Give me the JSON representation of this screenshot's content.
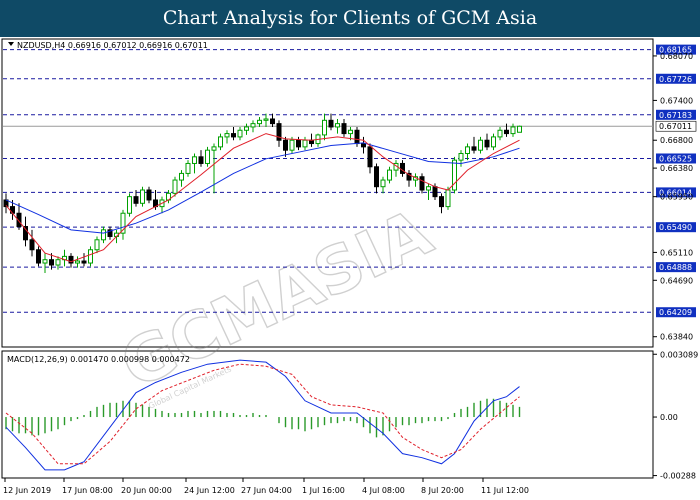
{
  "header": {
    "title": "Chart Analysis for Clients of GCM Asia"
  },
  "watermark": {
    "text": "GCMASIA",
    "subtext": "Global Capital Markets"
  },
  "colors": {
    "title_bg": "#0f4a66",
    "bull_candle": "#00a000",
    "bear_candle": "#000000",
    "ma_fast": "#e0202a",
    "ma_slow": "#1030e0",
    "level_line": "#1a1aa0",
    "level_label_bg": "#1030c0",
    "macd_line": "#1030e0",
    "signal_line": "#e0202a",
    "histogram": "#2a9a2a"
  },
  "chart_data": [
    {
      "type": "candlestick",
      "symbol_line": "NZDUSD,H4  0.66916 0.67012 0.66916 0.67011",
      "ylim": [
        0.637,
        0.6831
      ],
      "current_price": "0.67011",
      "y_ticks": [
        "0.68070",
        "0.67400",
        "0.66800",
        "0.66380",
        "0.65950",
        "0.65110",
        "0.64690",
        "0.63840"
      ],
      "levels": [
        "0.68165",
        "0.67726",
        "0.67183",
        "0.66525",
        "0.66014",
        "0.65490",
        "0.64888",
        "0.64209"
      ],
      "x_tick_labels": [
        "12 Jun 2019",
        "17 Jun 08:00",
        "20 Jun 00:00",
        "24 Jun 12:00",
        "27 Jun 04:00",
        "1 Jul 16:00",
        "4 Jul 08:00",
        "8 Jul 20:00",
        "11 Jul 12:00"
      ],
      "candles": [
        [
          0.659,
          0.66,
          0.657,
          0.658
        ],
        [
          0.658,
          0.659,
          0.656,
          0.657
        ],
        [
          0.657,
          0.6585,
          0.6545,
          0.655
        ],
        [
          0.655,
          0.6565,
          0.652,
          0.653
        ],
        [
          0.653,
          0.6545,
          0.6505,
          0.6515
        ],
        [
          0.6515,
          0.652,
          0.649,
          0.6495
        ],
        [
          0.6495,
          0.651,
          0.648,
          0.65
        ],
        [
          0.65,
          0.651,
          0.6485,
          0.6492
        ],
        [
          0.6492,
          0.6505,
          0.6485,
          0.65
        ],
        [
          0.65,
          0.6515,
          0.649,
          0.6505
        ],
        [
          0.6505,
          0.651,
          0.6488,
          0.6495
        ],
        [
          0.6495,
          0.6505,
          0.6488,
          0.6498
        ],
        [
          0.6498,
          0.651,
          0.649,
          0.6495
        ],
        [
          0.6495,
          0.652,
          0.649,
          0.6515
        ],
        [
          0.6515,
          0.6535,
          0.651,
          0.653
        ],
        [
          0.653,
          0.655,
          0.6525,
          0.6545
        ],
        [
          0.6545,
          0.655,
          0.653,
          0.6535
        ],
        [
          0.6535,
          0.6545,
          0.6525,
          0.654
        ],
        [
          0.654,
          0.6575,
          0.653,
          0.657
        ],
        [
          0.657,
          0.66,
          0.6565,
          0.6595
        ],
        [
          0.6595,
          0.6605,
          0.658,
          0.6585
        ],
        [
          0.6585,
          0.661,
          0.658,
          0.6605
        ],
        [
          0.6605,
          0.661,
          0.6585,
          0.659
        ],
        [
          0.659,
          0.6605,
          0.6575,
          0.658
        ],
        [
          0.658,
          0.6595,
          0.657,
          0.659
        ],
        [
          0.659,
          0.6605,
          0.6585,
          0.66
        ],
        [
          0.66,
          0.6625,
          0.6595,
          0.662
        ],
        [
          0.662,
          0.6635,
          0.661,
          0.663
        ],
        [
          0.663,
          0.665,
          0.6625,
          0.6645
        ],
        [
          0.6645,
          0.666,
          0.663,
          0.6655
        ],
        [
          0.6655,
          0.6665,
          0.664,
          0.6645
        ],
        [
          0.6645,
          0.667,
          0.664,
          0.6665
        ],
        [
          0.6665,
          0.6675,
          0.66,
          0.667
        ],
        [
          0.667,
          0.669,
          0.6665,
          0.6685
        ],
        [
          0.6685,
          0.6695,
          0.6675,
          0.669
        ],
        [
          0.669,
          0.67,
          0.668,
          0.6685
        ],
        [
          0.6685,
          0.67,
          0.668,
          0.6695
        ],
        [
          0.6695,
          0.6705,
          0.6688,
          0.67
        ],
        [
          0.67,
          0.671,
          0.6692,
          0.6705
        ],
        [
          0.6705,
          0.6715,
          0.67,
          0.671
        ],
        [
          0.671,
          0.672,
          0.67,
          0.6712
        ],
        [
          0.6712,
          0.672,
          0.67,
          0.6705
        ],
        [
          0.6705,
          0.671,
          0.667,
          0.668
        ],
        [
          0.668,
          0.6685,
          0.6655,
          0.6665
        ],
        [
          0.6665,
          0.6685,
          0.666,
          0.668
        ],
        [
          0.668,
          0.6685,
          0.6665,
          0.667
        ],
        [
          0.667,
          0.6685,
          0.6665,
          0.668
        ],
        [
          0.668,
          0.669,
          0.667,
          0.6675
        ],
        [
          0.6675,
          0.669,
          0.667,
          0.6688
        ],
        [
          0.6688,
          0.672,
          0.668,
          0.671
        ],
        [
          0.671,
          0.672,
          0.6695,
          0.67
        ],
        [
          0.67,
          0.6712,
          0.669,
          0.6705
        ],
        [
          0.6705,
          0.6712,
          0.6685,
          0.669
        ],
        [
          0.669,
          0.67,
          0.668,
          0.6695
        ],
        [
          0.6695,
          0.67,
          0.667,
          0.6675
        ],
        [
          0.6675,
          0.6685,
          0.666,
          0.667
        ],
        [
          0.667,
          0.6675,
          0.663,
          0.664
        ],
        [
          0.664,
          0.6645,
          0.66,
          0.661
        ],
        [
          0.661,
          0.6625,
          0.66,
          0.662
        ],
        [
          0.662,
          0.664,
          0.6615,
          0.6635
        ],
        [
          0.6635,
          0.665,
          0.6625,
          0.6645
        ],
        [
          0.6645,
          0.665,
          0.6625,
          0.663
        ],
        [
          0.663,
          0.6635,
          0.661,
          0.662
        ],
        [
          0.662,
          0.663,
          0.661,
          0.6625
        ],
        [
          0.6625,
          0.663,
          0.66,
          0.6605
        ],
        [
          0.6605,
          0.6615,
          0.659,
          0.661
        ],
        [
          0.661,
          0.6615,
          0.659,
          0.6595
        ],
        [
          0.6595,
          0.66,
          0.657,
          0.658
        ],
        [
          0.658,
          0.661,
          0.6575,
          0.6605
        ],
        [
          0.6605,
          0.6655,
          0.66,
          0.665
        ],
        [
          0.665,
          0.6665,
          0.664,
          0.666
        ],
        [
          0.666,
          0.6675,
          0.665,
          0.667
        ],
        [
          0.667,
          0.6685,
          0.666,
          0.6665
        ],
        [
          0.6665,
          0.6685,
          0.666,
          0.668
        ],
        [
          0.668,
          0.669,
          0.6665,
          0.667
        ],
        [
          0.667,
          0.669,
          0.6665,
          0.6685
        ],
        [
          0.6685,
          0.67,
          0.668,
          0.6695
        ],
        [
          0.6695,
          0.6705,
          0.6685,
          0.669
        ],
        [
          0.669,
          0.6705,
          0.6685,
          0.67
        ],
        [
          0.6692,
          0.6702,
          0.6692,
          0.6701
        ]
      ],
      "ma_fast": [
        [
          0,
          0.6582
        ],
        [
          6,
          0.651
        ],
        [
          10,
          0.6497
        ],
        [
          15,
          0.6515
        ],
        [
          20,
          0.6565
        ],
        [
          25,
          0.659
        ],
        [
          30,
          0.6628
        ],
        [
          35,
          0.6668
        ],
        [
          40,
          0.669
        ],
        [
          43,
          0.6682
        ],
        [
          47,
          0.668
        ],
        [
          51,
          0.6685
        ],
        [
          55,
          0.668
        ],
        [
          58,
          0.6655
        ],
        [
          62,
          0.6628
        ],
        [
          66,
          0.661
        ],
        [
          68,
          0.6605
        ],
        [
          71,
          0.6635
        ],
        [
          75,
          0.666
        ],
        [
          79,
          0.668
        ]
      ],
      "ma_slow": [
        [
          0,
          0.659
        ],
        [
          5,
          0.6568
        ],
        [
          10,
          0.6545
        ],
        [
          15,
          0.654
        ],
        [
          20,
          0.6555
        ],
        [
          25,
          0.6575
        ],
        [
          30,
          0.6602
        ],
        [
          35,
          0.663
        ],
        [
          40,
          0.6652
        ],
        [
          45,
          0.6662
        ],
        [
          50,
          0.6672
        ],
        [
          55,
          0.6676
        ],
        [
          60,
          0.6662
        ],
        [
          65,
          0.6648
        ],
        [
          70,
          0.6645
        ],
        [
          75,
          0.6655
        ],
        [
          79,
          0.6668
        ]
      ]
    },
    {
      "type": "macd",
      "label": "MACD(12,26,9) 0.001470 0.000998 0.000472",
      "ylim": [
        -0.00295,
        0.0032
      ],
      "y_ticks": [
        "0.003089",
        "0.00",
        "-0.00288"
      ],
      "histogram": [
        -0.0006,
        -0.0007,
        -0.0008,
        -0.0008,
        -0.0009,
        -0.0009,
        -0.0008,
        -0.0007,
        -0.0006,
        -0.0004,
        -0.0002,
        -0.0001,
        0.0001,
        0.0003,
        0.0005,
        0.0006,
        0.0007,
        0.0007,
        0.0008,
        0.0008,
        0.0007,
        0.0006,
        0.0005,
        0.0004,
        0.0003,
        0.0002,
        0.0002,
        0.0002,
        0.0003,
        0.0003,
        0.0002,
        0.0003,
        0.0003,
        0.0003,
        0.0002,
        0.0002,
        0.0001,
        0.0001,
        0.0002,
        0.0001,
        0.0001,
        0.0,
        -0.0003,
        -0.0005,
        -0.0006,
        -0.0006,
        -0.0007,
        -0.0006,
        -0.0005,
        -0.0004,
        -0.0003,
        -0.0003,
        -0.0002,
        -0.0002,
        -0.0003,
        -0.0005,
        -0.0008,
        -0.001,
        -0.0009,
        -0.0007,
        -0.0005,
        -0.0004,
        -0.0004,
        -0.0003,
        -0.0003,
        -0.0002,
        -0.0002,
        -0.0002,
        -0.0001,
        0.0002,
        0.0004,
        0.0005,
        0.0007,
        0.0008,
        0.0009,
        0.0009,
        0.0008,
        0.0007,
        0.0006,
        0.0005
      ],
      "macd": [
        [
          0,
          -0.0005
        ],
        [
          3,
          -0.0015
        ],
        [
          6,
          -0.0026
        ],
        [
          9,
          -0.0026
        ],
        [
          12,
          -0.0022
        ],
        [
          16,
          -0.0005
        ],
        [
          20,
          0.0012
        ],
        [
          23,
          0.0017
        ],
        [
          27,
          0.0022
        ],
        [
          31,
          0.0026
        ],
        [
          36,
          0.0028
        ],
        [
          40,
          0.0027
        ],
        [
          43,
          0.002
        ],
        [
          46,
          0.0008
        ],
        [
          50,
          0.0002
        ],
        [
          54,
          0.0002
        ],
        [
          58,
          -0.0008
        ],
        [
          61,
          -0.0018
        ],
        [
          64,
          -0.002
        ],
        [
          67,
          -0.0023
        ],
        [
          69,
          -0.0018
        ],
        [
          72,
          -0.0002
        ],
        [
          75,
          0.0008
        ],
        [
          77,
          0.001
        ],
        [
          79,
          0.0015
        ]
      ],
      "signal": [
        [
          0,
          0.0002
        ],
        [
          4,
          -0.0008
        ],
        [
          8,
          -0.0023
        ],
        [
          12,
          -0.0023
        ],
        [
          16,
          -0.0012
        ],
        [
          20,
          0.0004
        ],
        [
          24,
          0.0013
        ],
        [
          28,
          0.0018
        ],
        [
          32,
          0.0023
        ],
        [
          36,
          0.0026
        ],
        [
          40,
          0.0025
        ],
        [
          44,
          0.0021
        ],
        [
          47,
          0.001
        ],
        [
          50,
          0.0006
        ],
        [
          54,
          0.0005
        ],
        [
          58,
          0.0002
        ],
        [
          61,
          -0.001
        ],
        [
          64,
          -0.0016
        ],
        [
          67,
          -0.002
        ],
        [
          70,
          -0.0016
        ],
        [
          73,
          -0.0006
        ],
        [
          76,
          0.0002
        ],
        [
          79,
          0.001
        ]
      ]
    }
  ]
}
